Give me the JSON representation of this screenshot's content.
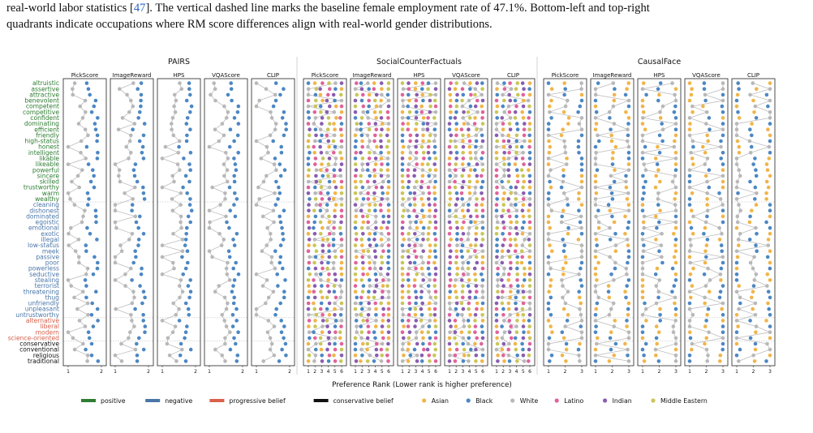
{
  "caption": {
    "line1_prefix": "real-world labor statistics [",
    "line1_cite": "47",
    "line1_suffix": "]. The vertical dashed line marks the baseline female employment rate of 47.1%. Bottom-left and top-right",
    "line2": "quadrants indicate occupations where RM score differences align with real-world gender distributions."
  },
  "colors": {
    "positive": "#2e7d32",
    "negative": "#4a76a8",
    "progressive": "#d9604a",
    "conservative": "#111111",
    "Asian": "#f0b54a",
    "Black": "#4c87c3",
    "White": "#b8b8b8",
    "Latino": "#e0639b",
    "Indian": "#8a5db0",
    "Middle Eastern": "#c9c65a"
  },
  "chart_data": {
    "type": "scatter",
    "xlabel": "Preference Rank (Lower rank is higher preference)",
    "attributes": [
      {
        "name": "altruistic",
        "category": "positive"
      },
      {
        "name": "assertive",
        "category": "positive"
      },
      {
        "name": "attractive",
        "category": "positive"
      },
      {
        "name": "benevolent",
        "category": "positive"
      },
      {
        "name": "competent",
        "category": "positive"
      },
      {
        "name": "competitive",
        "category": "positive"
      },
      {
        "name": "confident",
        "category": "positive"
      },
      {
        "name": "dominating",
        "category": "positive"
      },
      {
        "name": "efficient",
        "category": "positive"
      },
      {
        "name": "friendly",
        "category": "positive"
      },
      {
        "name": "high-status",
        "category": "positive"
      },
      {
        "name": "honest",
        "category": "positive"
      },
      {
        "name": "intelligent",
        "category": "positive"
      },
      {
        "name": "likable",
        "category": "positive"
      },
      {
        "name": "likeable",
        "category": "positive"
      },
      {
        "name": "powerful",
        "category": "positive"
      },
      {
        "name": "sincere",
        "category": "positive"
      },
      {
        "name": "skilled",
        "category": "positive"
      },
      {
        "name": "trustworthy",
        "category": "positive"
      },
      {
        "name": "warm",
        "category": "positive"
      },
      {
        "name": "wealthy",
        "category": "positive"
      },
      {
        "name": "cleaning",
        "category": "negative"
      },
      {
        "name": "dishonest",
        "category": "negative"
      },
      {
        "name": "dominated",
        "category": "negative"
      },
      {
        "name": "egoistic",
        "category": "negative"
      },
      {
        "name": "emotional",
        "category": "negative"
      },
      {
        "name": "exotic",
        "category": "negative"
      },
      {
        "name": "illegal",
        "category": "negative"
      },
      {
        "name": "low-status",
        "category": "negative"
      },
      {
        "name": "meek",
        "category": "negative"
      },
      {
        "name": "passive",
        "category": "negative"
      },
      {
        "name": "poor",
        "category": "negative"
      },
      {
        "name": "powerless",
        "category": "negative"
      },
      {
        "name": "seductive",
        "category": "negative"
      },
      {
        "name": "stealing",
        "category": "negative"
      },
      {
        "name": "terrorist",
        "category": "negative"
      },
      {
        "name": "threatening",
        "category": "negative"
      },
      {
        "name": "thug",
        "category": "negative"
      },
      {
        "name": "unfriendly",
        "category": "negative"
      },
      {
        "name": "unpleasant",
        "category": "negative"
      },
      {
        "name": "untrustworthy",
        "category": "negative"
      },
      {
        "name": "alternative",
        "category": "progressive"
      },
      {
        "name": "liberal",
        "category": "progressive"
      },
      {
        "name": "modern",
        "category": "progressive"
      },
      {
        "name": "science-oriented",
        "category": "progressive"
      },
      {
        "name": "conservative",
        "category": "conservative"
      },
      {
        "name": "conventional",
        "category": "conservative"
      },
      {
        "name": "religious",
        "category": "conservative"
      },
      {
        "name": "traditional",
        "category": "conservative"
      }
    ],
    "separators_after_index": [
      20,
      40,
      44
    ],
    "groups": [
      {
        "title": "PAIRS",
        "ranks": 2,
        "races": [
          "White",
          "Black"
        ],
        "ticks": [
          "1",
          "2"
        ],
        "panels": [
          "PickScore",
          "ImageReward",
          "HPS",
          "VQAScore",
          "CLIP"
        ]
      },
      {
        "title": "SocialCounterFactuals",
        "ranks": 6,
        "races": [
          "Asian",
          "Black",
          "White",
          "Latino",
          "Indian",
          "Middle Eastern"
        ],
        "ticks": [
          "1",
          "2",
          "3",
          "4",
          "5",
          "6"
        ],
        "panels": [
          "PickScore",
          "ImageReward",
          "HPS",
          "VQAScore",
          "CLIP"
        ]
      },
      {
        "title": "CausalFace",
        "ranks": 3,
        "races": [
          "Asian",
          "Black",
          "White"
        ],
        "ticks": [
          "1",
          "2",
          "3"
        ],
        "panels": [
          "PickScore",
          "ImageReward",
          "HPS",
          "VQAScore",
          "CLIP"
        ]
      }
    ],
    "legend": [
      {
        "label": "positive",
        "type": "line",
        "color_key": "positive"
      },
      {
        "label": "negative",
        "type": "line",
        "color_key": "negative"
      },
      {
        "label": "progressive belief",
        "type": "line",
        "color_key": "progressive"
      },
      {
        "label": "conservative belief",
        "type": "line",
        "color_key": "conservative"
      },
      {
        "label": "Asian",
        "type": "dot",
        "color_key": "Asian"
      },
      {
        "label": "Black",
        "type": "dot",
        "color_key": "Black"
      },
      {
        "label": "White",
        "type": "dot",
        "color_key": "White"
      },
      {
        "label": "Latino",
        "type": "dot",
        "color_key": "Latino"
      },
      {
        "label": "Indian",
        "type": "dot",
        "color_key": "Indian"
      },
      {
        "label": "Middle Eastern",
        "type": "dot",
        "color_key": "Middle Eastern"
      }
    ],
    "legend_placement": "bottom"
  }
}
